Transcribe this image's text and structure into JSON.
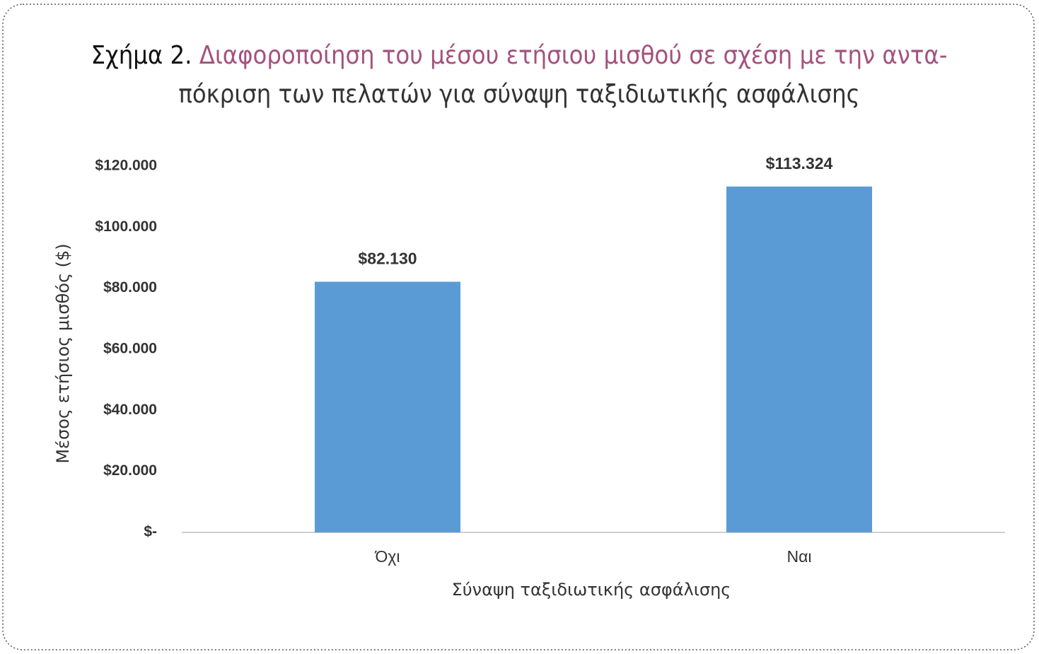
{
  "chart_data": {
    "type": "bar",
    "title_prefix": "Σχήμα 2.",
    "title_lines": [
      "Διαφοροποίηση του μέσου ετήσιου μισθού σε σχέση με την αντα-",
      "πόκριση των πελατών για σύναψη ταξιδιωτικής ασφάλισης"
    ],
    "title_color": "#a4527f",
    "x_label": "Σύναψη ταξιδιωτικής ασφάλισης",
    "y_label": "Μέσος ετήσιος μισθός ($)",
    "categories": [
      "Όχι",
      "Ναι"
    ],
    "values": [
      82130,
      113324
    ],
    "value_labels": [
      "$82.130",
      "$113.324"
    ],
    "color": "#5b9bd5",
    "ylim": [
      0,
      120000
    ],
    "yticks": [
      {
        "value": 0,
        "label": "$-"
      },
      {
        "value": 20000,
        "label": "$20.000"
      },
      {
        "value": 40000,
        "label": "$40.000"
      },
      {
        "value": 60000,
        "label": "$60.000"
      },
      {
        "value": 80000,
        "label": "$80.000"
      },
      {
        "value": 100000,
        "label": "$100.000"
      },
      {
        "value": 120000,
        "label": "$120.000"
      }
    ],
    "grid": false
  }
}
